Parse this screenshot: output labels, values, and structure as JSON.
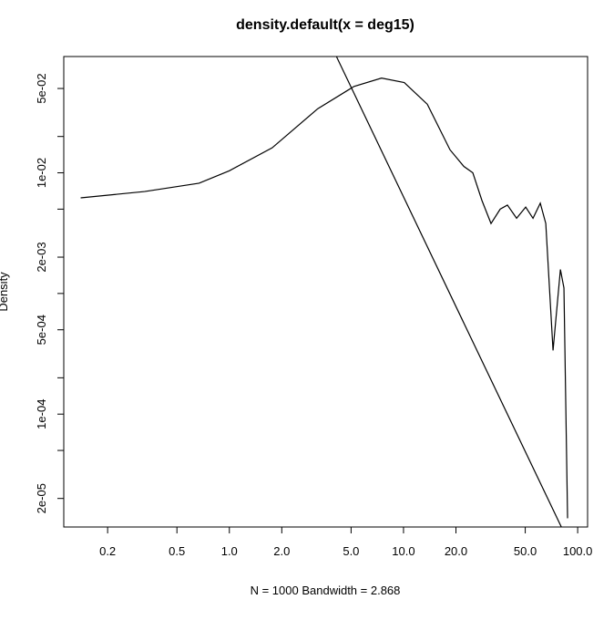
{
  "chart_data": {
    "type": "line",
    "title": "density.default(x = deg15)",
    "x_label": "N = 1000   Bandwidth = 2.868",
    "y_label": "Density",
    "log_x": true,
    "log_y": true,
    "grid": false,
    "xlim": [
      0.112,
      114
    ],
    "ylim": [
      1.16e-05,
      0.092
    ],
    "xticks": [
      0.2,
      0.5,
      {
        "value": 1,
        "label": "1.0"
      },
      {
        "value": 2,
        "label": "2.0"
      },
      {
        "value": 5,
        "label": "5.0"
      },
      {
        "value": 10,
        "label": "10.0"
      },
      {
        "value": 20,
        "label": "20.0"
      },
      {
        "value": 50,
        "label": "50.0"
      },
      {
        "value": 100,
        "label": "100.0"
      }
    ],
    "yticks": [
      {
        "value": 0.05,
        "label": "5e-02"
      },
      {
        "value": 0.01,
        "label": "1e-02"
      },
      {
        "value": 0.002,
        "label": "2e-03"
      },
      {
        "value": 0.0005,
        "label": "5e-04"
      },
      {
        "value": 0.0001,
        "label": "1e-04"
      },
      {
        "value": 2e-05,
        "label": "2e-05"
      }
    ],
    "yticks_minor": [
      0.02,
      0.005,
      0.001,
      0.0002,
      5e-05
    ],
    "series": [
      {
        "color": "#000000",
        "x": [
          0.14,
          0.326,
          0.67,
          1.0,
          1.76,
          3.22,
          5.2,
          7.48,
          10.1,
          13.7,
          18.5,
          22.2,
          25.0,
          28.2,
          31.8,
          35.9,
          39.5,
          44.6,
          50.3,
          55.4,
          61.0,
          65.6,
          72.2,
          79.6,
          83.4,
          87.5
        ],
        "values": [
          0.0062,
          0.007,
          0.0082,
          0.0104,
          0.0161,
          0.034,
          0.052,
          0.061,
          0.056,
          0.037,
          0.0155,
          0.0113,
          0.01,
          0.0059,
          0.0038,
          0.005,
          0.0054,
          0.0042,
          0.0052,
          0.0042,
          0.0056,
          0.0038,
          0.000337,
          0.00158,
          0.00111,
          1.37e-05
        ]
      },
      {
        "color": "#000000",
        "x": [
          4.12,
          80.6
        ],
        "values": [
          0.092,
          1.16e-05
        ]
      }
    ]
  }
}
